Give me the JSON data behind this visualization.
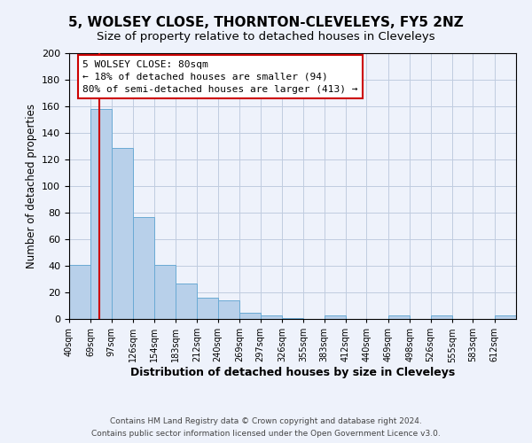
{
  "title": "5, WOLSEY CLOSE, THORNTON-CLEVELEYS, FY5 2NZ",
  "subtitle": "Size of property relative to detached houses in Cleveleys",
  "xlabel": "Distribution of detached houses by size in Cleveleys",
  "ylabel": "Number of detached properties",
  "bar_values": [
    41,
    158,
    129,
    77,
    41,
    27,
    16,
    14,
    5,
    3,
    1,
    0,
    3,
    0,
    0,
    3,
    0,
    3,
    0,
    0,
    3
  ],
  "bar_edges": [
    40,
    69,
    97,
    126,
    154,
    183,
    212,
    240,
    269,
    297,
    326,
    355,
    383,
    412,
    440,
    469,
    498,
    526,
    555,
    583,
    612,
    641
  ],
  "bar_labels": [
    "40sqm",
    "69sqm",
    "97sqm",
    "126sqm",
    "154sqm",
    "183sqm",
    "212sqm",
    "240sqm",
    "269sqm",
    "297sqm",
    "326sqm",
    "355sqm",
    "383sqm",
    "412sqm",
    "440sqm",
    "469sqm",
    "498sqm",
    "526sqm",
    "555sqm",
    "583sqm",
    "612sqm"
  ],
  "bar_color": "#b8d0ea",
  "bar_edgecolor": "#6aaad4",
  "red_line_x": 80,
  "ylim": [
    0,
    200
  ],
  "yticks": [
    0,
    20,
    40,
    60,
    80,
    100,
    120,
    140,
    160,
    180,
    200
  ],
  "annotation_title": "5 WOLSEY CLOSE: 80sqm",
  "annotation_line1": "← 18% of detached houses are smaller (94)",
  "annotation_line2": "80% of semi-detached houses are larger (413) →",
  "annotation_box_color": "#ffffff",
  "annotation_box_edgecolor": "#cc0000",
  "footer_line1": "Contains HM Land Registry data © Crown copyright and database right 2024.",
  "footer_line2": "Contains public sector information licensed under the Open Government Licence v3.0.",
  "background_color": "#eef2fb",
  "grid_color": "#c0cce0",
  "title_fontsize": 11,
  "subtitle_fontsize": 9.5
}
